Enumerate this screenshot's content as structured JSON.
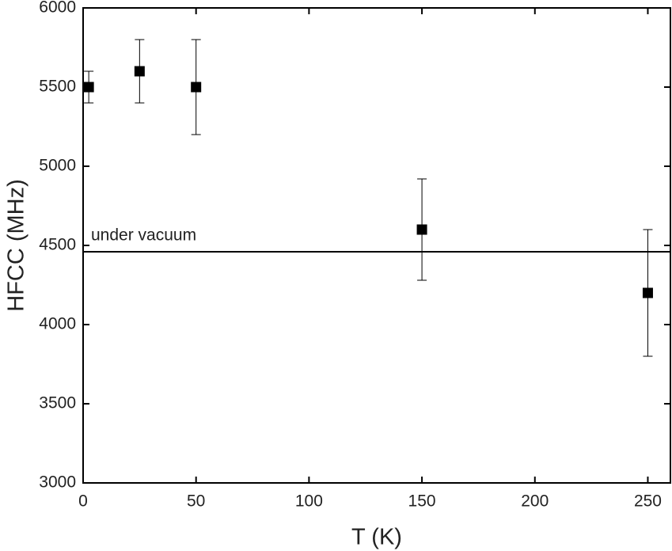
{
  "chart_data": {
    "type": "scatter",
    "xlabel": "T (K)",
    "ylabel": "HFCC (MHz)",
    "x": [
      2.5,
      25,
      50,
      150,
      250
    ],
    "values": [
      5500,
      5600,
      5500,
      4600,
      4200
    ],
    "errors": [
      100,
      200,
      300,
      320,
      400
    ],
    "color": "#000000",
    "reference_line": {
      "value": 4460,
      "label": "under vacuum"
    },
    "xlim": [
      0,
      260
    ],
    "xticks": [
      0,
      50,
      100,
      150,
      200,
      250
    ],
    "ylim": [
      3000,
      6000
    ],
    "yticks": [
      3000,
      3500,
      4000,
      4500,
      5000,
      5500,
      6000
    ]
  }
}
